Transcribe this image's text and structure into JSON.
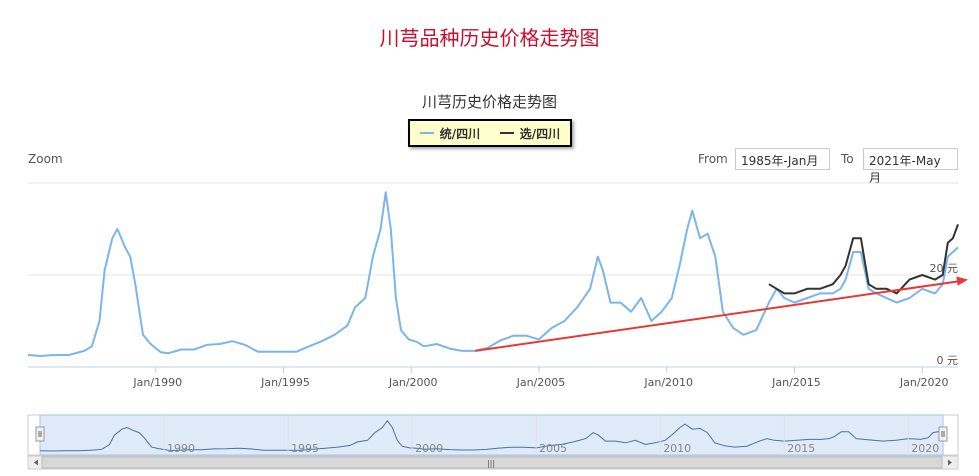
{
  "page": {
    "title": "川芎品种历史价格走势图"
  },
  "controls": {
    "zoom_label": "Zoom",
    "from_label": "From",
    "from_value": "1985年-Jan月",
    "to_label": "To",
    "to_value": "2021年-May月"
  },
  "navigator": {
    "scroll_grip": "|||"
  },
  "colors": {
    "series_1": "#7cb5ec",
    "series_2": "#333333",
    "arrow": "#e53935",
    "navigator_fill": "#d7e6f7"
  },
  "chart_data": {
    "type": "line",
    "title": "川芎历史价格走势图",
    "x_range": [
      1985.0,
      2021.4
    ],
    "y_range": [
      0,
      40
    ],
    "x_ticks": [
      {
        "value": 1990,
        "label": "Jan/1990"
      },
      {
        "value": 1995,
        "label": "Jan/1995"
      },
      {
        "value": 2000,
        "label": "Jan/2000"
      },
      {
        "value": 2005,
        "label": "Jan/2005"
      },
      {
        "value": 2010,
        "label": "Jan/2010"
      },
      {
        "value": 2015,
        "label": "Jan/2015"
      },
      {
        "value": 2020,
        "label": "Jan/2020"
      }
    ],
    "y_ticks": [
      {
        "value": 0,
        "label": "0 元"
      },
      {
        "value": 20,
        "label": "20 元"
      }
    ],
    "navigator_labels": [
      {
        "value": 1990,
        "label": "1990"
      },
      {
        "value": 1995,
        "label": "1995"
      },
      {
        "value": 2000,
        "label": "2000"
      },
      {
        "value": 2005,
        "label": "2005"
      },
      {
        "value": 2010,
        "label": "2010"
      },
      {
        "value": 2015,
        "label": "2015"
      },
      {
        "value": 2020,
        "label": "2020"
      }
    ],
    "grid": true,
    "legend_position": "top-center",
    "series": [
      {
        "name": "统/四川",
        "color": "#7cb5ec",
        "points": [
          [
            1985.0,
            2.6
          ],
          [
            1985.5,
            2.4
          ],
          [
            1986.0,
            2.6
          ],
          [
            1986.6,
            2.6
          ],
          [
            1987.2,
            3.5
          ],
          [
            1987.5,
            4.5
          ],
          [
            1987.8,
            10
          ],
          [
            1988.0,
            21
          ],
          [
            1988.3,
            28
          ],
          [
            1988.5,
            30
          ],
          [
            1988.8,
            26
          ],
          [
            1989.0,
            24
          ],
          [
            1989.2,
            18
          ],
          [
            1989.5,
            7
          ],
          [
            1989.8,
            5
          ],
          [
            1990.2,
            3.2
          ],
          [
            1990.5,
            3.0
          ],
          [
            1991.0,
            3.8
          ],
          [
            1991.5,
            3.8
          ],
          [
            1992.0,
            4.8
          ],
          [
            1992.5,
            5.0
          ],
          [
            1993.0,
            5.6
          ],
          [
            1993.5,
            4.8
          ],
          [
            1994.0,
            3.3
          ],
          [
            1994.5,
            3.3
          ],
          [
            1995.0,
            3.3
          ],
          [
            1995.5,
            3.3
          ],
          [
            1996.0,
            4.5
          ],
          [
            1996.5,
            5.6
          ],
          [
            1997.0,
            7.0
          ],
          [
            1997.5,
            9.0
          ],
          [
            1997.8,
            13
          ],
          [
            1998.2,
            15
          ],
          [
            1998.5,
            24
          ],
          [
            1998.8,
            30
          ],
          [
            1999.0,
            38
          ],
          [
            1999.2,
            30
          ],
          [
            1999.4,
            15
          ],
          [
            1999.6,
            8
          ],
          [
            1999.9,
            6
          ],
          [
            2000.2,
            5.5
          ],
          [
            2000.5,
            4.5
          ],
          [
            2001.0,
            5.0
          ],
          [
            2001.5,
            4.0
          ],
          [
            2002.0,
            3.5
          ],
          [
            2002.5,
            3.5
          ],
          [
            2003.0,
            4.2
          ],
          [
            2003.5,
            5.8
          ],
          [
            2004.0,
            6.8
          ],
          [
            2004.5,
            6.8
          ],
          [
            2005.0,
            6.0
          ],
          [
            2005.5,
            8.5
          ],
          [
            2006.0,
            10
          ],
          [
            2006.5,
            13
          ],
          [
            2007.0,
            17
          ],
          [
            2007.3,
            24
          ],
          [
            2007.5,
            21
          ],
          [
            2007.8,
            14
          ],
          [
            2008.2,
            14
          ],
          [
            2008.6,
            12
          ],
          [
            2009.0,
            15
          ],
          [
            2009.4,
            10
          ],
          [
            2009.8,
            12
          ],
          [
            2010.2,
            15
          ],
          [
            2010.5,
            22
          ],
          [
            2010.8,
            30
          ],
          [
            2011.0,
            34
          ],
          [
            2011.3,
            28
          ],
          [
            2011.6,
            29
          ],
          [
            2011.9,
            24
          ],
          [
            2012.2,
            12
          ],
          [
            2012.6,
            8.5
          ],
          [
            2013.0,
            7
          ],
          [
            2013.5,
            8
          ],
          [
            2014.0,
            14
          ],
          [
            2014.3,
            17
          ],
          [
            2014.6,
            15
          ],
          [
            2015.0,
            14
          ],
          [
            2015.5,
            15
          ],
          [
            2016.0,
            16
          ],
          [
            2016.5,
            16
          ],
          [
            2016.8,
            17
          ],
          [
            2017.0,
            19
          ],
          [
            2017.3,
            25
          ],
          [
            2017.6,
            25
          ],
          [
            2017.9,
            17
          ],
          [
            2018.2,
            16
          ],
          [
            2018.6,
            15
          ],
          [
            2019.0,
            14
          ],
          [
            2019.5,
            15
          ],
          [
            2020.0,
            17
          ],
          [
            2020.5,
            16
          ],
          [
            2020.8,
            18
          ],
          [
            2021.0,
            24
          ],
          [
            2021.2,
            25
          ],
          [
            2021.4,
            26
          ]
        ]
      },
      {
        "name": "选/四川",
        "color": "#333333",
        "points": [
          [
            2014.0,
            18
          ],
          [
            2014.3,
            17
          ],
          [
            2014.6,
            16
          ],
          [
            2015.0,
            16
          ],
          [
            2015.5,
            17
          ],
          [
            2016.0,
            17
          ],
          [
            2016.5,
            18
          ],
          [
            2016.8,
            20
          ],
          [
            2017.0,
            22
          ],
          [
            2017.3,
            28
          ],
          [
            2017.6,
            28
          ],
          [
            2017.9,
            18
          ],
          [
            2018.2,
            17
          ],
          [
            2018.6,
            17
          ],
          [
            2019.0,
            16
          ],
          [
            2019.5,
            19
          ],
          [
            2020.0,
            20
          ],
          [
            2020.5,
            19
          ],
          [
            2020.8,
            20
          ],
          [
            2021.0,
            27
          ],
          [
            2021.2,
            28
          ],
          [
            2021.4,
            31
          ]
        ]
      }
    ],
    "annotation": {
      "type": "arrow",
      "from": [
        2002.5,
        3.5
      ],
      "to": [
        2021.4,
        19
      ]
    }
  }
}
